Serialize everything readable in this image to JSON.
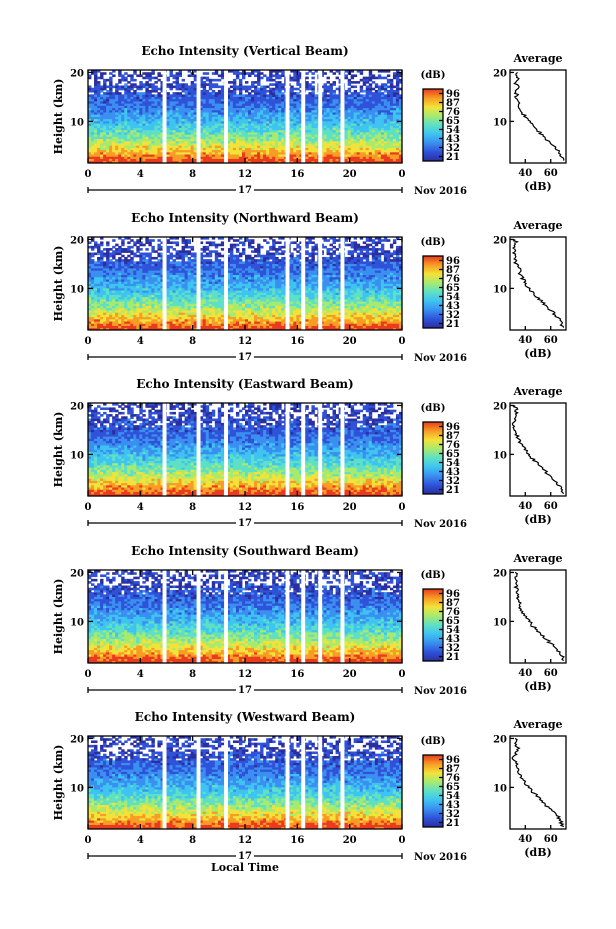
{
  "chart_data": [
    {
      "type": "heatmap",
      "title": "Echo Intensity (Vertical Beam)",
      "ylabel": "Height (km)",
      "x_ticks": [
        "0",
        "4",
        "8",
        "12",
        "16",
        "20",
        "0"
      ],
      "y_ticks": [
        "10",
        "20"
      ],
      "date_marker": "17",
      "date_label": "Nov 2016",
      "xlim": [
        0,
        24
      ],
      "ylim": [
        1.5,
        20.5
      ],
      "colorbar": {
        "unit": "(dB)",
        "ticks": [
          "96",
          "87",
          "76",
          "65",
          "54",
          "43",
          "32",
          "21"
        ]
      },
      "data_gaps_hours": [
        [
          5.7,
          6.0
        ],
        [
          8.3,
          8.6
        ],
        [
          10.4,
          10.7
        ],
        [
          15.1,
          15.4
        ],
        [
          16.3,
          16.6
        ],
        [
          17.6,
          17.9
        ],
        [
          19.3,
          19.6
        ]
      ],
      "average_profile": {
        "title": "Average",
        "xlabel": "(dB)",
        "x_ticks": [
          "40",
          "60"
        ],
        "y_ticks": [
          "10",
          "20"
        ],
        "xlim": [
          28,
          72
        ],
        "ylim": [
          1.5,
          20.5
        ],
        "height_km": [
          2,
          3,
          4,
          5,
          6,
          7,
          8,
          9,
          10,
          11,
          12,
          13,
          14,
          15,
          16,
          17,
          18,
          19,
          20
        ],
        "db": [
          70,
          68,
          66,
          62,
          58,
          54,
          50,
          46,
          43,
          40,
          37,
          35,
          34,
          33,
          33,
          34,
          32,
          34,
          34
        ]
      }
    },
    {
      "type": "heatmap",
      "title": "Echo Intensity (Northward Beam)",
      "ylabel": "Height (km)",
      "x_ticks": [
        "0",
        "4",
        "8",
        "12",
        "16",
        "20",
        "0"
      ],
      "y_ticks": [
        "10",
        "20"
      ],
      "date_marker": "17",
      "date_label": "Nov 2016",
      "xlim": [
        0,
        24
      ],
      "ylim": [
        1.5,
        20.5
      ],
      "colorbar": {
        "unit": "(dB)",
        "ticks": [
          "96",
          "87",
          "76",
          "65",
          "54",
          "43",
          "32",
          "21"
        ]
      },
      "data_gaps_hours": [
        [
          5.7,
          6.0
        ],
        [
          8.3,
          8.6
        ],
        [
          10.4,
          10.7
        ],
        [
          15.1,
          15.4
        ],
        [
          16.3,
          16.6
        ],
        [
          17.6,
          17.9
        ],
        [
          19.3,
          19.6
        ]
      ],
      "average_profile": {
        "title": "Average",
        "xlabel": "(dB)",
        "x_ticks": [
          "40",
          "60"
        ],
        "y_ticks": [
          "10",
          "20"
        ],
        "xlim": [
          28,
          72
        ],
        "ylim": [
          1.5,
          20.5
        ],
        "height_km": [
          2,
          3,
          4,
          5,
          6,
          7,
          8,
          9,
          10,
          11,
          12,
          13,
          14,
          15,
          16,
          17,
          18,
          19,
          20
        ],
        "db": [
          70,
          68,
          66,
          62,
          58,
          54,
          50,
          46,
          43,
          40,
          38,
          36,
          35,
          33,
          32,
          31,
          31,
          33,
          32
        ]
      }
    },
    {
      "type": "heatmap",
      "title": "Echo Intensity (Eastward Beam)",
      "ylabel": "Height (km)",
      "x_ticks": [
        "0",
        "4",
        "8",
        "12",
        "16",
        "20",
        "0"
      ],
      "y_ticks": [
        "10",
        "20"
      ],
      "date_marker": "17",
      "date_label": "Nov 2016",
      "xlim": [
        0,
        24
      ],
      "ylim": [
        1.5,
        20.5
      ],
      "colorbar": {
        "unit": "(dB)",
        "ticks": [
          "96",
          "87",
          "76",
          "65",
          "54",
          "43",
          "32",
          "21"
        ]
      },
      "data_gaps_hours": [
        [
          5.7,
          6.0
        ],
        [
          8.3,
          8.6
        ],
        [
          10.4,
          10.7
        ],
        [
          15.1,
          15.4
        ],
        [
          16.3,
          16.6
        ],
        [
          17.6,
          17.9
        ],
        [
          19.3,
          19.6
        ]
      ],
      "average_profile": {
        "title": "Average",
        "xlabel": "(dB)",
        "x_ticks": [
          "40",
          "60"
        ],
        "y_ticks": [
          "10",
          "20"
        ],
        "xlim": [
          28,
          72
        ],
        "ylim": [
          1.5,
          20.5
        ],
        "height_km": [
          2,
          3,
          4,
          5,
          6,
          7,
          8,
          9,
          10,
          11,
          12,
          13,
          14,
          15,
          16,
          17,
          18,
          19,
          20
        ],
        "db": [
          70,
          68,
          65,
          62,
          58,
          54,
          50,
          46,
          43,
          40,
          37,
          35,
          33,
          32,
          31,
          31,
          32,
          33,
          32
        ]
      }
    },
    {
      "type": "heatmap",
      "title": "Echo Intensity (Southward Beam)",
      "ylabel": "Height (km)",
      "x_ticks": [
        "0",
        "4",
        "8",
        "12",
        "16",
        "20",
        "0"
      ],
      "y_ticks": [
        "10",
        "20"
      ],
      "date_marker": "17",
      "date_label": "Nov 2016",
      "xlim": [
        0,
        24
      ],
      "ylim": [
        1.5,
        20.5
      ],
      "colorbar": {
        "unit": "(dB)",
        "ticks": [
          "96",
          "87",
          "76",
          "65",
          "54",
          "43",
          "32",
          "21"
        ]
      },
      "data_gaps_hours": [
        [
          5.7,
          6.0
        ],
        [
          8.3,
          8.6
        ],
        [
          10.4,
          10.7
        ],
        [
          15.1,
          15.4
        ],
        [
          16.3,
          16.6
        ],
        [
          17.6,
          17.9
        ],
        [
          19.3,
          19.6
        ]
      ],
      "average_profile": {
        "title": "Average",
        "xlabel": "(dB)",
        "x_ticks": [
          "40",
          "60"
        ],
        "y_ticks": [
          "10",
          "20"
        ],
        "xlim": [
          28,
          72
        ],
        "ylim": [
          1.5,
          20.5
        ],
        "height_km": [
          2,
          3,
          4,
          5,
          6,
          7,
          8,
          9,
          10,
          11,
          12,
          13,
          14,
          15,
          16,
          17,
          18,
          19,
          20
        ],
        "db": [
          70,
          69,
          66,
          62,
          58,
          54,
          50,
          46,
          43,
          40,
          38,
          36,
          35,
          34,
          34,
          33,
          32,
          33,
          32
        ]
      }
    },
    {
      "type": "heatmap",
      "title": "Echo Intensity (Westward Beam)",
      "ylabel": "Height (km)",
      "x_ticks": [
        "0",
        "4",
        "8",
        "12",
        "16",
        "20",
        "0"
      ],
      "y_ticks": [
        "10",
        "20"
      ],
      "date_marker": "17",
      "date_label": "Nov 2016",
      "xlabel": "Local Time",
      "xlim": [
        0,
        24
      ],
      "ylim": [
        1.5,
        20.5
      ],
      "colorbar": {
        "unit": "(dB)",
        "ticks": [
          "96",
          "87",
          "76",
          "65",
          "54",
          "43",
          "32",
          "21"
        ]
      },
      "data_gaps_hours": [
        [
          5.7,
          6.0
        ],
        [
          8.3,
          8.6
        ],
        [
          10.4,
          10.7
        ],
        [
          15.1,
          15.4
        ],
        [
          16.3,
          16.6
        ],
        [
          17.6,
          17.9
        ],
        [
          19.3,
          19.6
        ]
      ],
      "average_profile": {
        "title": "Average",
        "xlabel": "(dB)",
        "x_ticks": [
          "40",
          "60"
        ],
        "y_ticks": [
          "10",
          "20"
        ],
        "xlim": [
          28,
          72
        ],
        "ylim": [
          1.5,
          20.5
        ],
        "height_km": [
          2,
          3,
          4,
          5,
          6,
          7,
          8,
          9,
          10,
          11,
          12,
          13,
          14,
          15,
          16,
          17,
          18,
          19,
          20
        ],
        "db": [
          70,
          68,
          66,
          62,
          58,
          54,
          50,
          46,
          43,
          40,
          37,
          35,
          33,
          33,
          31,
          33,
          34,
          33,
          32
        ]
      }
    }
  ],
  "colors": {
    "colormap": [
      "#2b2f9e",
      "#2f52d9",
      "#3a8ff0",
      "#3ec4f0",
      "#5ee0c6",
      "#a6ea70",
      "#f3e23a",
      "#f79c25",
      "#ea3b1e"
    ],
    "gap": "#ffffff",
    "axis": "#000000"
  }
}
